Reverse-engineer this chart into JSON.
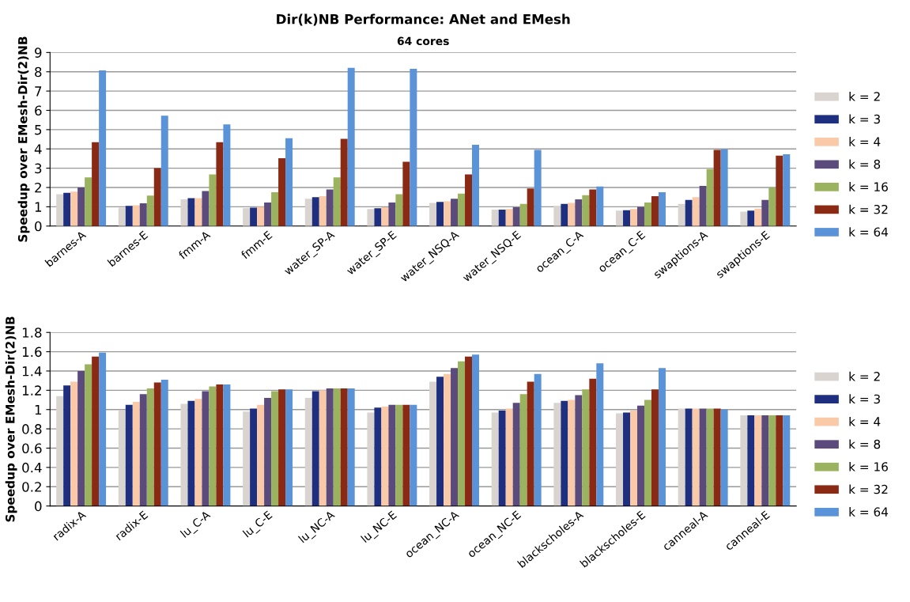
{
  "chart_data": [
    {
      "type": "bar",
      "title": "Dir(k)NB Performance: ANet and EMesh",
      "subtitle": "64 cores",
      "ylabel": "Speedup over EMesh-Dir(2)NB",
      "categories": [
        "barnes-A",
        "barnes-E",
        "fmm-A",
        "fmm-E",
        "water_SP-A",
        "water_SP-E",
        "water_NSQ-A",
        "water_NSQ-E",
        "ocean_C-A",
        "ocean_C-E",
        "swaptions-A",
        "swaptions-E"
      ],
      "ylim": [
        0,
        9
      ],
      "yticks": [
        0,
        1,
        2,
        3,
        4,
        5,
        6,
        7,
        8,
        9
      ],
      "grid": "y",
      "legend": "right",
      "series": [
        {
          "name": "k = 2",
          "color": "#d9d4cf",
          "values": [
            1.65,
            0.95,
            1.38,
            0.93,
            1.42,
            0.88,
            1.2,
            0.85,
            1.05,
            0.8,
            1.15,
            0.75
          ]
        },
        {
          "name": "k = 3",
          "color": "#1f2f80",
          "values": [
            1.72,
            1.05,
            1.45,
            0.95,
            1.5,
            0.92,
            1.25,
            0.85,
            1.15,
            0.82,
            1.35,
            0.8
          ]
        },
        {
          "name": "k = 4",
          "color": "#f9c9a8",
          "values": [
            1.78,
            1.08,
            1.45,
            1.0,
            1.55,
            0.97,
            1.28,
            0.88,
            1.2,
            0.88,
            1.5,
            0.9
          ]
        },
        {
          "name": "k = 8",
          "color": "#5b4a7c",
          "values": [
            2.0,
            1.18,
            1.82,
            1.22,
            1.9,
            1.22,
            1.42,
            0.97,
            1.38,
            1.0,
            2.08,
            1.35
          ]
        },
        {
          "name": "k = 16",
          "color": "#9bb35e",
          "values": [
            2.52,
            1.58,
            2.68,
            1.75,
            2.52,
            1.65,
            1.68,
            1.15,
            1.6,
            1.22,
            2.95,
            2.0
          ]
        },
        {
          "name": "k = 32",
          "color": "#8b2a14",
          "values": [
            4.35,
            3.0,
            4.35,
            3.52,
            4.52,
            3.33,
            2.68,
            1.95,
            1.9,
            1.55,
            3.95,
            3.65
          ]
        },
        {
          "name": "k = 64",
          "color": "#5a93d8",
          "values": [
            8.07,
            5.72,
            5.27,
            4.55,
            8.2,
            8.15,
            4.22,
            3.95,
            2.05,
            1.75,
            3.98,
            3.72
          ]
        }
      ]
    },
    {
      "type": "bar",
      "ylabel": "Speedup over EMesh-Dir(2)NB",
      "categories": [
        "radix-A",
        "radix-E",
        "lu_C-A",
        "lu_C-E",
        "lu_NC-A",
        "lu_NC-E",
        "ocean_NC-A",
        "ocean_NC-E",
        "blackscholes-A",
        "blackscholes-E",
        "canneal-A",
        "canneal-E"
      ],
      "ylim": [
        0,
        1.8
      ],
      "yticks": [
        0,
        0.2,
        0.4,
        0.6,
        0.8,
        1,
        1.2,
        1.4,
        1.6,
        1.8
      ],
      "grid": "y",
      "legend": "right",
      "series": [
        {
          "name": "k = 2",
          "color": "#d9d4cf",
          "values": [
            1.14,
            0.99,
            1.06,
            0.98,
            1.12,
            0.97,
            1.29,
            0.97,
            1.07,
            0.96,
            1.01,
            0.94
          ]
        },
        {
          "name": "k = 3",
          "color": "#1f2f80",
          "values": [
            1.25,
            1.05,
            1.09,
            1.01,
            1.19,
            1.02,
            1.34,
            0.99,
            1.09,
            0.97,
            1.01,
            0.94
          ]
        },
        {
          "name": "k = 4",
          "color": "#f9c9a8",
          "values": [
            1.29,
            1.08,
            1.11,
            1.05,
            1.2,
            1.03,
            1.37,
            1.01,
            1.1,
            0.99,
            1.01,
            0.94
          ]
        },
        {
          "name": "k = 8",
          "color": "#5b4a7c",
          "values": [
            1.4,
            1.16,
            1.19,
            1.12,
            1.22,
            1.05,
            1.43,
            1.07,
            1.15,
            1.04,
            1.01,
            0.94
          ]
        },
        {
          "name": "k = 16",
          "color": "#9bb35e",
          "values": [
            1.47,
            1.22,
            1.24,
            1.19,
            1.22,
            1.05,
            1.5,
            1.16,
            1.21,
            1.1,
            1.01,
            0.94
          ]
        },
        {
          "name": "k = 32",
          "color": "#8b2a14",
          "values": [
            1.55,
            1.28,
            1.26,
            1.21,
            1.22,
            1.05,
            1.55,
            1.29,
            1.32,
            1.21,
            1.01,
            0.94
          ]
        },
        {
          "name": "k = 64",
          "color": "#5a93d8",
          "values": [
            1.59,
            1.31,
            1.26,
            1.21,
            1.22,
            1.05,
            1.57,
            1.37,
            1.48,
            1.43,
            1.0,
            0.94
          ]
        }
      ]
    }
  ]
}
